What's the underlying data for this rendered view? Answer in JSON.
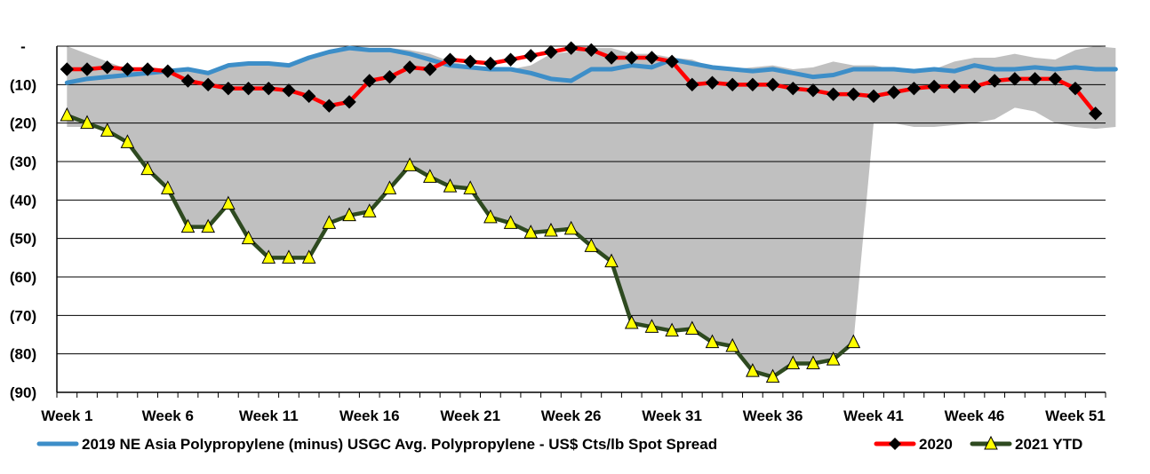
{
  "chart_data": {
    "type": "line",
    "title": "",
    "xlabel": "",
    "ylabel": "",
    "ylim": [
      -90,
      0
    ],
    "y_ticks": [
      0,
      -10,
      -20,
      -30,
      -40,
      -50,
      -60,
      -70,
      -80,
      -90
    ],
    "y_tick_labels": [
      "-",
      "(10)",
      "(20)",
      "(30)",
      "(40)",
      "(50)",
      "(60)",
      "(70)",
      "(80)",
      "(90)"
    ],
    "x_tick_labels": [
      "Week 1",
      "Week 6",
      "Week 11",
      "Week 16",
      "Week 21",
      "Week 26",
      "Week 31",
      "Week 36",
      "Week 41",
      "Week 46",
      "Week 51"
    ],
    "x_tick_weeks": [
      1,
      6,
      11,
      16,
      21,
      26,
      31,
      36,
      41,
      46,
      51
    ],
    "grid": "horizontal",
    "legend_position": "bottom",
    "range_band": {
      "color": "#c0c0c0",
      "upper": [
        0,
        -2,
        -4,
        -6,
        -7,
        -7,
        -6,
        -7,
        -5,
        -4,
        -4,
        -5,
        -3,
        -2,
        -1,
        -0.5,
        -0.5,
        -1,
        -2,
        -4,
        -5,
        -6,
        -6,
        -5,
        -2,
        -1.5,
        -0.5,
        -0.5,
        -2,
        -2,
        -3,
        -3.5,
        -5.5,
        -6,
        -5.5,
        -5,
        -6,
        -5.5,
        -4,
        -5,
        -5,
        -6,
        -6,
        -6,
        -4,
        -3,
        -3,
        -2,
        -3,
        -3.5,
        -1,
        0,
        -0.5
      ],
      "lower": [
        -21,
        -21,
        -22,
        -25,
        -32,
        -37,
        -47,
        -47,
        -41,
        -50,
        -55,
        -55,
        -55,
        -46,
        -44,
        -43,
        -37,
        -31,
        -34,
        -36.5,
        -37,
        -44.5,
        -46,
        -48.5,
        -48,
        -47.5,
        -52,
        -56,
        -72,
        -73,
        -74,
        -73.5,
        -77,
        -78,
        -84.5,
        -86,
        -82.5,
        -82.5,
        -81.5,
        -77,
        -20,
        -20,
        -21,
        -21,
        -20.5,
        -20,
        -19,
        -16,
        -17,
        -20,
        -21,
        -21.5,
        -21
      ]
    },
    "series": [
      {
        "name": "2019 NE Asia Polypropylene (minus) USGC Avg. Polypropylene - US$ Cts/lb Spot Spread",
        "color": "#3d8ec8",
        "marker": "none",
        "values": [
          -9.5,
          -8.5,
          -8,
          -7.5,
          -7,
          -6.5,
          -6,
          -7,
          -5,
          -4.5,
          -4.5,
          -5,
          -3,
          -1.5,
          -0.5,
          -1,
          -1,
          -2,
          -3.5,
          -5,
          -5.5,
          -6,
          -6,
          -7,
          -8.5,
          -9,
          -6,
          -6,
          -5,
          -5.5,
          -3.5,
          -4.5,
          -5.5,
          -6,
          -6.5,
          -6,
          -7,
          -8,
          -7.5,
          -6,
          -6,
          -6,
          -6.5,
          -6,
          -6.5,
          -5,
          -6,
          -6,
          -5.5,
          -6,
          -5.5,
          -6,
          -6
        ]
      },
      {
        "name": "2020",
        "color": "#ff0000",
        "marker": "diamond",
        "values": [
          -6,
          -6,
          -5.5,
          -6,
          -6,
          -6.5,
          -9,
          -10,
          -11,
          -11,
          -11,
          -11.5,
          -13,
          -15.5,
          -14.5,
          -9,
          -8,
          -5.5,
          -6,
          -3.5,
          -4,
          -4.5,
          -3.5,
          -2.5,
          -1.5,
          -0.5,
          -1,
          -3,
          -3,
          -3,
          -4,
          -10,
          -9.5,
          -10,
          -10,
          -10,
          -11,
          -11.5,
          -12.5,
          -12.5,
          -13,
          -12,
          -11,
          -10.5,
          -10.5,
          -10.5,
          -9,
          -8.5,
          -8.5,
          -8.5,
          -11,
          -17.5
        ]
      },
      {
        "name": "2021 YTD",
        "color": "#2e4a20",
        "marker": "triangle",
        "values": [
          -18,
          -20,
          -22,
          -25,
          -32,
          -37,
          -47,
          -47,
          -41,
          -50,
          -55,
          -55,
          -55,
          -46,
          -44,
          -43,
          -37,
          -31,
          -34,
          -36.5,
          -37,
          -44.5,
          -46,
          -48.5,
          -48,
          -47.5,
          -52,
          -56,
          -72,
          -73,
          -74,
          -73.5,
          -77,
          -78,
          -84.5,
          -86,
          -82.5,
          -82.5,
          -81.5,
          -77
        ]
      }
    ]
  }
}
